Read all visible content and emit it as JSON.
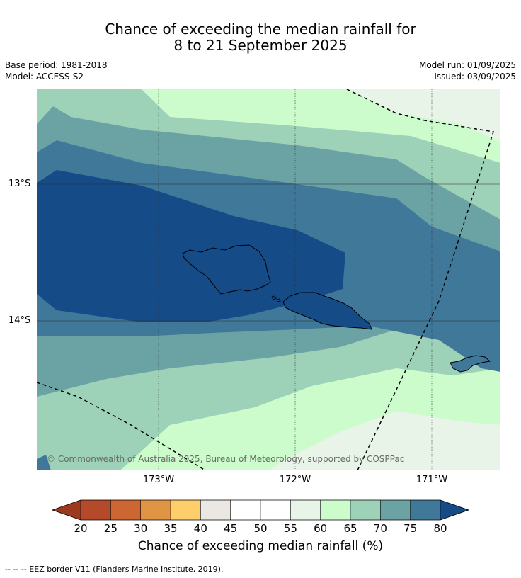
{
  "title": {
    "line1": "Chance of exceeding the median rainfall for",
    "line2": "8 to 21 September 2025"
  },
  "meta": {
    "base_period": "Base period: 1981-2018",
    "model": "Model: ACCESS-S2",
    "model_run": "Model run: 01/09/2025",
    "issued": "Issued: 03/09/2025"
  },
  "axes": {
    "lat_labels": [
      "13°S",
      "14°S"
    ],
    "lon_labels": [
      "173°W",
      "172°W",
      "171°W"
    ]
  },
  "copyright": "© Commonwealth of Australia 2025, Bureau of Meteorology, supported by COSPPac",
  "colorbar": {
    "ticks": [
      "20",
      "25",
      "30",
      "35",
      "40",
      "45",
      "50",
      "55",
      "60",
      "65",
      "70",
      "75",
      "80"
    ],
    "colors": [
      "#9c3a20",
      "#b54a2a",
      "#cc6633",
      "#e09545",
      "#fdce6a",
      "#ebe8e4",
      "#ffffff",
      "#ffffff",
      "#e8f4e8",
      "#ccfccc",
      "#9dd1b8",
      "#6ba3a5",
      "#40789a",
      "#154b87"
    ],
    "label": "Chance of exceeding median rainfall (%)"
  },
  "footnote": "--  --  -- EEZ border V11 (Flanders Marine Institute, 2019)."
}
